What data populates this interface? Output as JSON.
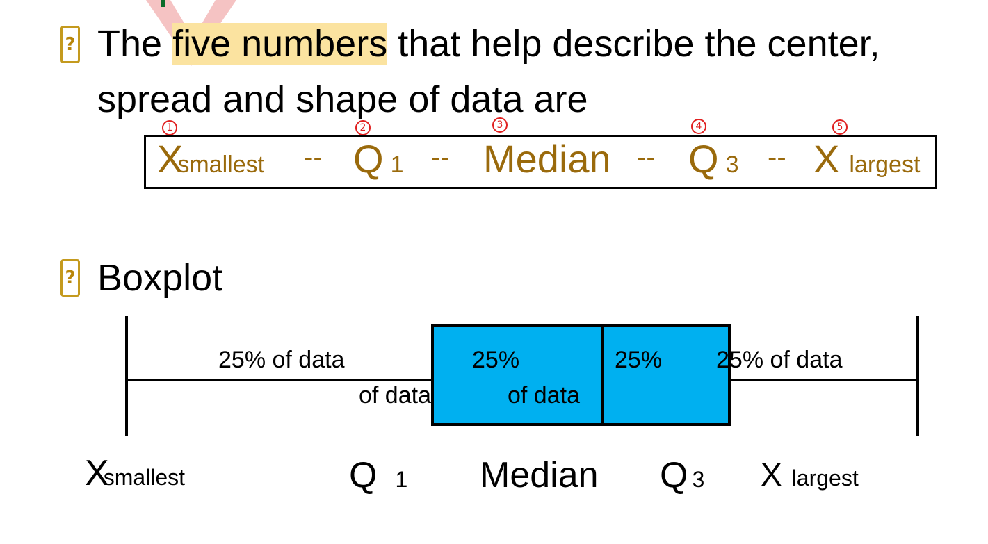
{
  "heading1": {
    "pre": "The ",
    "highlight": "five numbers",
    "post": " that help describe the center,",
    "line2": "spread and shape of data are"
  },
  "five_numbers": {
    "x_small_main": "X",
    "x_small_sub": "smallest",
    "q1_main": "Q",
    "q1_sub": "1",
    "median": "Median",
    "q3_main": "Q",
    "q3_sub": "3",
    "x_large_main": "X",
    "x_large_sub": "largest",
    "sep": "--",
    "markers": [
      "1",
      "2",
      "3",
      "4",
      "5"
    ]
  },
  "heading2": "Boxplot",
  "bullet_glyph": "?",
  "boxplot": {
    "label_left": "25% of data",
    "label_q1_of": "of data",
    "label_box1_pct": "25%",
    "label_box1_of": "of data",
    "label_box2_pct": "25%",
    "label_right": "25% of data",
    "box_color": "#00b0f0"
  },
  "axis": {
    "x_small_main": "X",
    "x_small_sub": "smallest",
    "q1_main": "Q",
    "q1_sub": "1",
    "median": "Median",
    "q3_main": "Q",
    "q3_sub": "3",
    "x_large_main": "X",
    "x_large_sub": "largest"
  },
  "colors": {
    "bullet": "#c49a1e",
    "gold_text": "#9a6a0c",
    "highlight": "#fbe3a0",
    "annotation_red": "#e02020"
  }
}
